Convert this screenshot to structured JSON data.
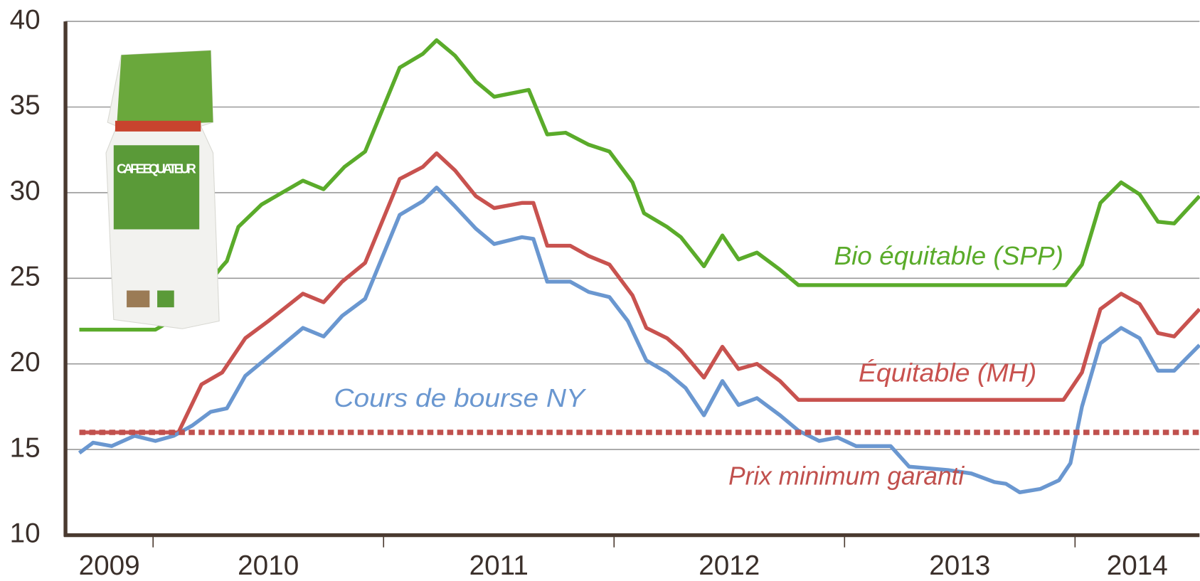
{
  "chart_data": {
    "type": "line",
    "ylim": [
      10,
      40
    ],
    "yticks": [
      10,
      15,
      20,
      25,
      30,
      35,
      40
    ],
    "grid": true,
    "xlim": [
      2009.62,
      2014.54
    ],
    "xticks": [
      2010,
      2011,
      2012,
      2013,
      2014
    ],
    "categories": [
      "2009",
      "2010",
      "2011",
      "2012",
      "2013",
      "2014"
    ],
    "bag_label": "CAFE EQUATEUR",
    "series": [
      {
        "name": "Bio équitable (SPP)",
        "color": "#5aab2a",
        "x": [
          2009.68,
          2010.01,
          2010.14,
          2010.27,
          2010.3,
          2010.32,
          2010.37,
          2010.47,
          2010.65,
          2010.74,
          2010.83,
          2010.92,
          2011.07,
          2011.17,
          2011.23,
          2011.31,
          2011.4,
          2011.48,
          2011.63,
          2011.71,
          2011.79,
          2011.89,
          2011.98,
          2012.08,
          2012.13,
          2012.23,
          2012.29,
          2012.39,
          2012.47,
          2012.54,
          2012.62,
          2012.72,
          2012.8,
          2013.96,
          2014.03,
          2014.11,
          2014.2,
          2014.28,
          2014.36,
          2014.43,
          2014.54
        ],
        "values": [
          22,
          22,
          23,
          25.2,
          25.7,
          26,
          28,
          29.3,
          30.7,
          30.2,
          31.5,
          32.4,
          37.3,
          38.1,
          38.9,
          38,
          36.5,
          35.6,
          36,
          33.4,
          33.5,
          32.8,
          32.4,
          30.6,
          28.8,
          28,
          27.4,
          25.7,
          27.5,
          26.1,
          26.5,
          25.5,
          24.6,
          24.6,
          25.8,
          29.4,
          30.6,
          29.9,
          28.3,
          28.2,
          29.8
        ]
      },
      {
        "name": "Équitable (MH)",
        "color": "#c8524f",
        "x": [
          2009.68,
          2010.11,
          2010.21,
          2010.3,
          2010.4,
          2010.5,
          2010.65,
          2010.74,
          2010.82,
          2010.92,
          2011.07,
          2011.17,
          2011.23,
          2011.31,
          2011.4,
          2011.48,
          2011.6,
          2011.65,
          2011.71,
          2011.81,
          2011.89,
          2011.98,
          2012.08,
          2012.14,
          2012.23,
          2012.29,
          2012.39,
          2012.47,
          2012.54,
          2012.62,
          2012.72,
          2012.8,
          2013.95,
          2014.03,
          2014.11,
          2014.2,
          2014.28,
          2014.36,
          2014.43,
          2014.54
        ],
        "values": [
          16,
          16,
          18.8,
          19.5,
          21.5,
          22.5,
          24.1,
          23.6,
          24.8,
          25.9,
          30.8,
          31.5,
          32.3,
          31.3,
          29.8,
          29.1,
          29.4,
          29.4,
          26.9,
          26.9,
          26.3,
          25.8,
          24,
          22.1,
          21.5,
          20.8,
          19.2,
          21,
          19.7,
          20,
          19,
          17.9,
          17.9,
          19.5,
          23.2,
          24.1,
          23.5,
          21.8,
          21.6,
          23.2
        ]
      },
      {
        "name": "Cours de bourse NY",
        "color": "#6a97d0",
        "x": [
          2009.68,
          2009.74,
          2009.82,
          2009.92,
          2010.01,
          2010.09,
          2010.17,
          2010.25,
          2010.32,
          2010.4,
          2010.49,
          2010.65,
          2010.74,
          2010.82,
          2010.92,
          2011.07,
          2011.17,
          2011.23,
          2011.31,
          2011.4,
          2011.48,
          2011.6,
          2011.65,
          2011.71,
          2011.81,
          2011.89,
          2011.98,
          2012.06,
          2012.14,
          2012.23,
          2012.31,
          2012.39,
          2012.47,
          2012.54,
          2012.62,
          2012.72,
          2012.8,
          2012.89,
          2012.97,
          2013.05,
          2013.2,
          2013.28,
          2013.45,
          2013.55,
          2013.65,
          2013.7,
          2013.76,
          2013.85,
          2013.93,
          2013.98,
          2014.03,
          2014.11,
          2014.2,
          2014.28,
          2014.36,
          2014.43,
          2014.54
        ],
        "values": [
          14.8,
          15.4,
          15.2,
          15.8,
          15.5,
          15.8,
          16.4,
          17.2,
          17.4,
          19.3,
          20.3,
          22.1,
          21.6,
          22.8,
          23.8,
          28.7,
          29.5,
          30.3,
          29.2,
          27.9,
          27,
          27.4,
          27.3,
          24.8,
          24.8,
          24.2,
          23.9,
          22.5,
          20.2,
          19.5,
          18.6,
          17,
          19,
          17.6,
          18,
          17,
          16.1,
          15.5,
          15.7,
          15.2,
          15.2,
          14,
          13.8,
          13.6,
          13.1,
          13,
          12.5,
          12.7,
          13.2,
          14.2,
          17.5,
          21.2,
          22.1,
          21.5,
          19.6,
          19.6,
          21.1
        ]
      },
      {
        "name": "Prix minimum garanti",
        "color": "#c0504d",
        "style": "dotted",
        "x": [
          2009.68,
          2014.54
        ],
        "values": [
          16,
          16
        ]
      }
    ]
  }
}
